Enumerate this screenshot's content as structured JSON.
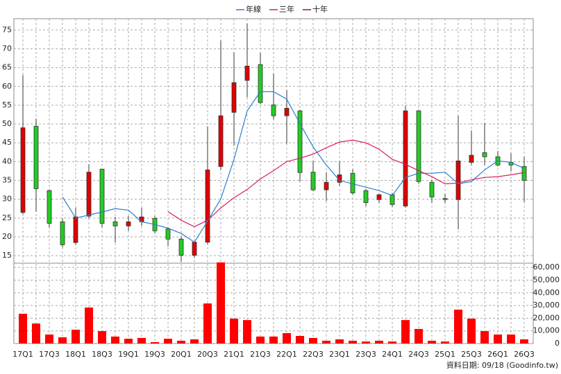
{
  "chart_data": {
    "type": "candlestick",
    "categories": [
      "17Q1",
      null,
      "17Q3",
      null,
      "18Q1",
      null,
      "18Q3",
      null,
      "19Q1",
      null,
      "19Q3",
      null,
      "20Q1",
      null,
      "20Q3",
      null,
      "21Q1",
      null,
      "21Q3",
      null,
      "22Q1",
      null,
      "22Q3",
      null,
      "23Q1",
      null,
      "23Q3",
      null,
      "24Q1",
      null,
      "24Q3",
      null,
      "25Q1",
      null,
      "25Q3",
      null,
      "26Q1",
      null,
      "26Q3"
    ],
    "open": [
      26.5,
      49.4,
      32.3,
      24,
      18.5,
      25.5,
      38,
      24,
      22.9,
      24,
      24.9,
      22.1,
      19.4,
      15.1,
      18.6,
      38.7,
      53.1,
      61.6,
      65.8,
      55.1,
      52.2,
      53.5,
      37.2,
      32.5,
      34.5,
      36.9,
      32.3,
      29.9,
      31.2,
      28.2,
      53.5,
      34.5,
      30.2,
      29.9,
      39.8,
      42.4,
      41.3,
      39.8,
      38.7
    ],
    "high": [
      63,
      51.4,
      32.6,
      25,
      27.7,
      39.3,
      38,
      25.3,
      25.5,
      27.7,
      25.5,
      22.5,
      20,
      18.8,
      49.4,
      72.2,
      69.1,
      76.7,
      69,
      63.4,
      59,
      53.8,
      40.2,
      37.2,
      40,
      38,
      32.8,
      31.5,
      31.7,
      54.9,
      53.8,
      35.2,
      31.4,
      52.2,
      48.3,
      50.3,
      42.8,
      42.2,
      41.3
    ],
    "low": [
      26,
      26.7,
      22.5,
      17.2,
      17.9,
      24.9,
      22.5,
      18.5,
      21.6,
      22.9,
      20.9,
      17.5,
      13.3,
      14.4,
      18,
      37.8,
      44.2,
      57.1,
      55.3,
      51.2,
      44.8,
      34.7,
      32.1,
      29.5,
      33.6,
      31.2,
      28.2,
      29,
      28,
      27.7,
      34.1,
      29.1,
      28.9,
      22,
      39.1,
      39.1,
      38.7,
      37.4,
      29.3
    ],
    "close": [
      49,
      32.8,
      23.6,
      17.9,
      25.3,
      37.2,
      23.6,
      22.9,
      24,
      25.3,
      21.6,
      19.4,
      15.1,
      18.6,
      37.8,
      52.2,
      61,
      65.4,
      55.7,
      52.2,
      54.2,
      37.1,
      32.5,
      34.5,
      36.5,
      31.7,
      29.1,
      31.2,
      28.6,
      53.5,
      34.7,
      30.6,
      29.9,
      40.2,
      41.7,
      41.3,
      39.1,
      39.1,
      35
    ],
    "up_color": "#e00000",
    "down_color": "#22cc22",
    "series": [
      {
        "name": "年線",
        "color": "#2a7fd0",
        "values": [
          null,
          null,
          null,
          30.6,
          25,
          25.8,
          26.6,
          27.5,
          27.1,
          24,
          23.3,
          22.3,
          20.9,
          18.6,
          24.2,
          30.1,
          40.6,
          53.5,
          58.6,
          58.6,
          56.6,
          50.1,
          43.9,
          39.1,
          35,
          34.1,
          33.2,
          32.3,
          31,
          35.8,
          36.9,
          36.9,
          37.2,
          34.1,
          34.7,
          37.8,
          40.2,
          39.8,
          38.2
        ]
      },
      {
        "name": "三年",
        "color": "#d81b60",
        "values": [
          null,
          null,
          null,
          null,
          null,
          null,
          null,
          null,
          null,
          null,
          null,
          26.7,
          24.4,
          22.7,
          24.4,
          27.7,
          30.4,
          32.6,
          35.4,
          37.6,
          40,
          40.9,
          42,
          43.7,
          45.2,
          45.7,
          45,
          43.3,
          40.6,
          39.3,
          37.6,
          36,
          34.1,
          34.3,
          35.2,
          35.8,
          36,
          36.5,
          37.1
        ]
      },
      {
        "name": "十年",
        "color": "#8b1a3a",
        "values": [
          null,
          null,
          null,
          null,
          null,
          null,
          null,
          null,
          null,
          null,
          null,
          null,
          null,
          null,
          null,
          null,
          null,
          null,
          null,
          null,
          null,
          null,
          null,
          null,
          null,
          null,
          null,
          null,
          null,
          null,
          null,
          null,
          null,
          null,
          null,
          null,
          null,
          null,
          null
        ]
      }
    ],
    "ylim": [
      13,
      78
    ],
    "yticks": [
      15,
      20,
      25,
      30,
      35,
      40,
      45,
      50,
      55,
      60,
      65,
      70,
      75
    ],
    "grid": true,
    "volume": {
      "color": "#ff0000",
      "values": [
        23500,
        15800,
        7100,
        4900,
        10900,
        28400,
        9800,
        5500,
        3800,
        4400,
        1100,
        3800,
        2200,
        3300,
        31600,
        64000,
        19600,
        18500,
        5500,
        5500,
        8200,
        6000,
        4400,
        2200,
        3300,
        2200,
        1600,
        2200,
        1600,
        18500,
        11500,
        2200,
        1600,
        26700,
        19600,
        9800,
        7100,
        7100,
        3300
      ],
      "ylim": [
        0,
        65000
      ],
      "yticks": [
        0,
        {
          "value": 10000,
          "label": "10,000"
        },
        {
          "value": 20000,
          "label": "20,000"
        },
        {
          "value": 30000,
          "label": "30,000"
        },
        {
          "value": 40000,
          "label": "40,000"
        },
        {
          "value": 50000,
          "label": "50,000"
        },
        {
          "value": 60000,
          "label": "60,000"
        }
      ]
    },
    "source": "資料日期: 09/18  (Goodinfo.tw)"
  }
}
